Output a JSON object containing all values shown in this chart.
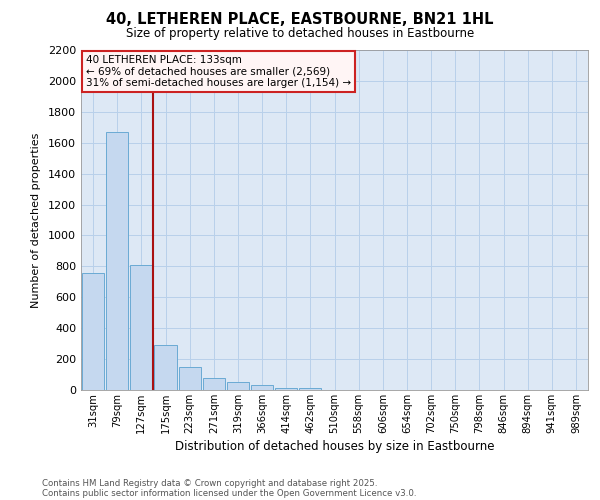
{
  "title_line1": "40, LETHEREN PLACE, EASTBOURNE, BN21 1HL",
  "title_line2": "Size of property relative to detached houses in Eastbourne",
  "xlabel": "Distribution of detached houses by size in Eastbourne",
  "ylabel": "Number of detached properties",
  "annotation_title": "40 LETHEREN PLACE: 133sqm",
  "annotation_line2": "← 69% of detached houses are smaller (2,569)",
  "annotation_line3": "31% of semi-detached houses are larger (1,154) →",
  "footnote1": "Contains HM Land Registry data © Crown copyright and database right 2025.",
  "footnote2": "Contains public sector information licensed under the Open Government Licence v3.0.",
  "categories": [
    "31sqm",
    "79sqm",
    "127sqm",
    "175sqm",
    "223sqm",
    "271sqm",
    "319sqm",
    "366sqm",
    "414sqm",
    "462sqm",
    "510sqm",
    "558sqm",
    "606sqm",
    "654sqm",
    "702sqm",
    "750sqm",
    "798sqm",
    "846sqm",
    "894sqm",
    "941sqm",
    "989sqm"
  ],
  "values": [
    760,
    1670,
    810,
    290,
    150,
    80,
    50,
    30,
    10,
    10,
    0,
    0,
    0,
    0,
    0,
    0,
    0,
    0,
    0,
    0,
    0
  ],
  "bar_color": "#c5d8ef",
  "bar_edge_color": "#6aaad4",
  "redline_x": 2.5,
  "ylim": [
    0,
    2200
  ],
  "yticks": [
    0,
    200,
    400,
    600,
    800,
    1000,
    1200,
    1400,
    1600,
    1800,
    2000,
    2200
  ],
  "annotation_box_facecolor": "#fff5f5",
  "annotation_box_edgecolor": "#cc2222",
  "grid_color": "#b8d0ea",
  "background_color": "#dde8f5",
  "fig_bg": "#ffffff",
  "footnote_color": "#555555"
}
